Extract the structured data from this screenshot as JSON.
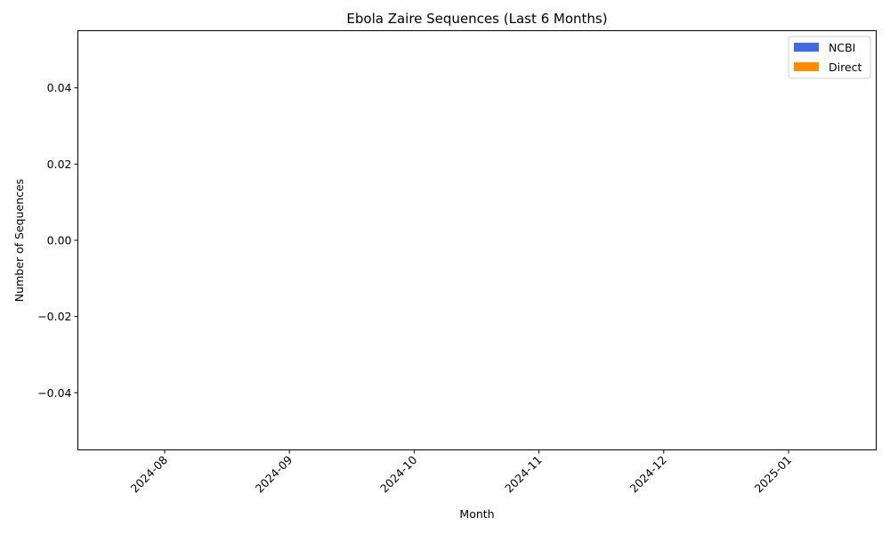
{
  "chart_data": {
    "type": "bar",
    "title": "Ebola Zaire Sequences (Last 6 Months)",
    "xlabel": "Month",
    "ylabel": "Number of Sequences",
    "categories": [
      "2024-08",
      "2024-09",
      "2024-10",
      "2024-11",
      "2024-12",
      "2025-01"
    ],
    "series": [
      {
        "name": "NCBI",
        "color": "#4169e1",
        "values": [
          0,
          0,
          0,
          0,
          0,
          0
        ]
      },
      {
        "name": "Direct",
        "color": "#ff8c00",
        "values": [
          0,
          0,
          0,
          0,
          0,
          0
        ]
      }
    ],
    "stacked": true,
    "ylim": [
      -0.055,
      0.055
    ],
    "yticks": [
      -0.04,
      -0.02,
      0.0,
      0.02,
      0.04
    ],
    "ytick_labels": [
      "−0.04",
      "−0.02",
      "0.00",
      "0.02",
      "0.04"
    ],
    "grid": false,
    "legend_position": "top-right"
  }
}
